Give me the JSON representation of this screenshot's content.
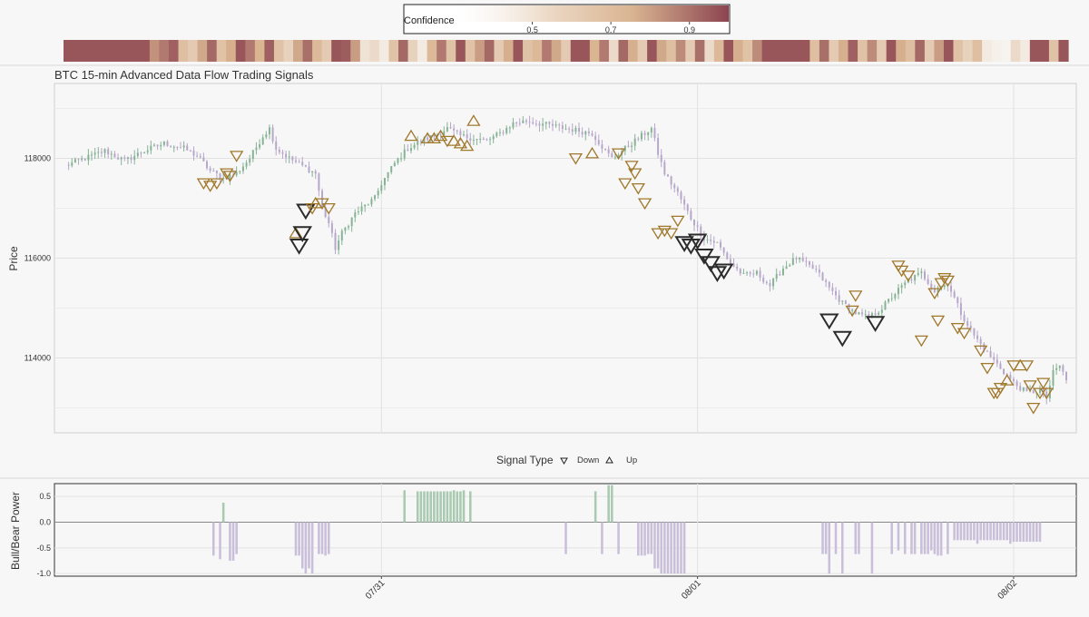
{
  "chart_data": [
    {
      "type": "heatmap",
      "legend_title": "Confidence",
      "legend_ticks": [
        "0.5",
        "0.7",
        "0.9"
      ],
      "legend_range": [
        0.3,
        1.0
      ],
      "colors": {
        "low": "#f7f3ee",
        "mid": "#d9b491",
        "high": "#8c4450"
      },
      "confidence_strip": [
        0.95,
        0.95,
        0.95,
        0.95,
        0.95,
        0.95,
        0.95,
        0.95,
        0.95,
        0.78,
        0.85,
        0.92,
        0.62,
        0.55,
        0.72,
        0.9,
        0.6,
        0.7,
        0.95,
        0.85,
        0.68,
        0.92,
        0.6,
        0.5,
        0.72,
        0.88,
        0.65,
        0.55,
        0.95,
        0.93,
        0.75,
        0.4,
        0.45,
        0.35,
        0.6,
        0.9,
        0.5,
        0.35,
        0.65,
        0.85,
        0.6,
        0.95,
        0.6,
        0.75,
        0.9,
        0.55,
        0.7,
        0.95,
        0.6,
        0.65,
        0.85,
        0.72,
        0.55,
        0.95,
        0.95,
        0.68,
        0.85,
        0.45,
        0.9,
        0.7,
        0.55,
        0.95,
        0.72,
        0.62,
        0.8,
        0.55,
        0.88,
        0.45,
        0.65,
        0.95,
        0.7,
        0.6,
        0.8,
        0.95,
        0.95,
        0.95,
        0.95,
        0.95,
        0.62,
        0.88,
        0.55,
        0.7,
        0.92,
        0.6,
        0.8,
        0.55,
        0.95,
        0.7,
        0.62,
        0.9,
        0.55,
        0.75,
        0.95,
        0.6,
        0.5,
        0.62,
        0.35,
        0.32,
        0.3,
        0.45,
        0.35,
        0.95,
        0.95,
        0.6,
        0.95
      ]
    },
    {
      "type": "candlestick",
      "title": "BTC 15-min Advanced Data Flow Trading Signals",
      "ylabel": "Price",
      "ylim": [
        112500,
        119500
      ],
      "yticks": [
        114000,
        116000,
        118000
      ],
      "xlim": [
        0,
        304
      ],
      "xtick_positions": [
        96,
        192,
        288
      ],
      "grid": true,
      "up_color": "#86b394",
      "down_color": "#b7a7c9",
      "anchors": [
        [
          0,
          117850
        ],
        [
          6,
          118000
        ],
        [
          12,
          118150
        ],
        [
          18,
          117950
        ],
        [
          24,
          118150
        ],
        [
          30,
          118300
        ],
        [
          36,
          118200
        ],
        [
          40,
          118050
        ],
        [
          44,
          117750
        ],
        [
          48,
          117600
        ],
        [
          52,
          117700
        ],
        [
          56,
          118000
        ],
        [
          60,
          118450
        ],
        [
          62,
          118600
        ],
        [
          64,
          118200
        ],
        [
          68,
          118000
        ],
        [
          72,
          117850
        ],
        [
          76,
          117700
        ],
        [
          78,
          117000
        ],
        [
          80,
          116700
        ],
        [
          82,
          116200
        ],
        [
          84,
          116500
        ],
        [
          86,
          116700
        ],
        [
          88,
          116900
        ],
        [
          90,
          117000
        ],
        [
          92,
          117100
        ],
        [
          94,
          117200
        ],
        [
          96,
          117500
        ],
        [
          100,
          117900
        ],
        [
          104,
          118200
        ],
        [
          108,
          118350
        ],
        [
          112,
          118450
        ],
        [
          116,
          118600
        ],
        [
          120,
          118450
        ],
        [
          124,
          118400
        ],
        [
          128,
          118350
        ],
        [
          132,
          118500
        ],
        [
          136,
          118700
        ],
        [
          140,
          118750
        ],
        [
          144,
          118700
        ],
        [
          148,
          118650
        ],
        [
          152,
          118600
        ],
        [
          156,
          118550
        ],
        [
          160,
          118500
        ],
        [
          164,
          118150
        ],
        [
          166,
          118000
        ],
        [
          168,
          118100
        ],
        [
          172,
          118300
        ],
        [
          176,
          118500
        ],
        [
          178,
          118600
        ],
        [
          180,
          118100
        ],
        [
          182,
          117700
        ],
        [
          186,
          117300
        ],
        [
          190,
          116800
        ],
        [
          194,
          116400
        ],
        [
          198,
          116300
        ],
        [
          202,
          115900
        ],
        [
          206,
          115650
        ],
        [
          210,
          115700
        ],
        [
          214,
          115450
        ],
        [
          218,
          115800
        ],
        [
          222,
          116000
        ],
        [
          228,
          115750
        ],
        [
          232,
          115400
        ],
        [
          236,
          115100
        ],
        [
          240,
          114900
        ],
        [
          244,
          114800
        ],
        [
          248,
          115000
        ],
        [
          252,
          115300
        ],
        [
          256,
          115550
        ],
        [
          260,
          115700
        ],
        [
          264,
          115350
        ],
        [
          268,
          115500
        ],
        [
          272,
          114900
        ],
        [
          276,
          114450
        ],
        [
          280,
          114100
        ],
        [
          284,
          113800
        ],
        [
          288,
          113500
        ],
        [
          292,
          113300
        ],
        [
          296,
          113350
        ],
        [
          298,
          113200
        ],
        [
          300,
          113700
        ],
        [
          302,
          113850
        ],
        [
          304,
          113550
        ]
      ],
      "signal_types": [
        "Down",
        "Up"
      ],
      "signals": [
        {
          "i": 42,
          "y": 117500,
          "dir": "down",
          "conf": 0.7
        },
        {
          "i": 44,
          "y": 117450,
          "dir": "down",
          "conf": 0.75
        },
        {
          "i": 46,
          "y": 117500,
          "dir": "down",
          "conf": 0.7
        },
        {
          "i": 49,
          "y": 117700,
          "dir": "down",
          "conf": 0.72
        },
        {
          "i": 50,
          "y": 117650,
          "dir": "down",
          "conf": 0.7
        },
        {
          "i": 52,
          "y": 118050,
          "dir": "down",
          "conf": 0.65
        },
        {
          "i": 70,
          "y": 116500,
          "dir": "up",
          "conf": 0.7
        },
        {
          "i": 71,
          "y": 116250,
          "dir": "down",
          "conf": 0.95
        },
        {
          "i": 72,
          "y": 116500,
          "dir": "down",
          "conf": 0.95
        },
        {
          "i": 73,
          "y": 116950,
          "dir": "down",
          "conf": 0.95
        },
        {
          "i": 75,
          "y": 117000,
          "dir": "down",
          "conf": 0.7
        },
        {
          "i": 76,
          "y": 117100,
          "dir": "up",
          "conf": 0.7
        },
        {
          "i": 78,
          "y": 117100,
          "dir": "down",
          "conf": 0.75
        },
        {
          "i": 80,
          "y": 117000,
          "dir": "down",
          "conf": 0.72
        },
        {
          "i": 105,
          "y": 118450,
          "dir": "up",
          "conf": 0.7
        },
        {
          "i": 110,
          "y": 118400,
          "dir": "up",
          "conf": 0.72
        },
        {
          "i": 112,
          "y": 118400,
          "dir": "up",
          "conf": 0.7
        },
        {
          "i": 114,
          "y": 118450,
          "dir": "up",
          "conf": 0.72
        },
        {
          "i": 116,
          "y": 118350,
          "dir": "down",
          "conf": 0.7
        },
        {
          "i": 118,
          "y": 118350,
          "dir": "up",
          "conf": 0.7
        },
        {
          "i": 120,
          "y": 118300,
          "dir": "up",
          "conf": 0.72
        },
        {
          "i": 122,
          "y": 118250,
          "dir": "up",
          "conf": 0.7
        },
        {
          "i": 124,
          "y": 118750,
          "dir": "up",
          "conf": 0.7
        },
        {
          "i": 155,
          "y": 118000,
          "dir": "down",
          "conf": 0.72
        },
        {
          "i": 160,
          "y": 118100,
          "dir": "up",
          "conf": 0.72
        },
        {
          "i": 168,
          "y": 118100,
          "dir": "down",
          "conf": 0.72
        },
        {
          "i": 170,
          "y": 117500,
          "dir": "down",
          "conf": 0.72
        },
        {
          "i": 172,
          "y": 117850,
          "dir": "down",
          "conf": 0.72
        },
        {
          "i": 173,
          "y": 117700,
          "dir": "down",
          "conf": 0.72
        },
        {
          "i": 174,
          "y": 117400,
          "dir": "down",
          "conf": 0.7
        },
        {
          "i": 176,
          "y": 117100,
          "dir": "down",
          "conf": 0.7
        },
        {
          "i": 180,
          "y": 116500,
          "dir": "down",
          "conf": 0.72
        },
        {
          "i": 182,
          "y": 116550,
          "dir": "down",
          "conf": 0.72
        },
        {
          "i": 184,
          "y": 116500,
          "dir": "down",
          "conf": 0.72
        },
        {
          "i": 186,
          "y": 116750,
          "dir": "down",
          "conf": 0.7
        },
        {
          "i": 188,
          "y": 116300,
          "dir": "down",
          "conf": 0.95
        },
        {
          "i": 190,
          "y": 116250,
          "dir": "down",
          "conf": 0.95
        },
        {
          "i": 192,
          "y": 116350,
          "dir": "down",
          "conf": 0.95
        },
        {
          "i": 194,
          "y": 116050,
          "dir": "down",
          "conf": 0.95
        },
        {
          "i": 196,
          "y": 115900,
          "dir": "down",
          "conf": 0.95
        },
        {
          "i": 198,
          "y": 115700,
          "dir": "down",
          "conf": 0.95
        },
        {
          "i": 200,
          "y": 115750,
          "dir": "down",
          "conf": 0.95
        },
        {
          "i": 232,
          "y": 114750,
          "dir": "down",
          "conf": 0.95
        },
        {
          "i": 236,
          "y": 114400,
          "dir": "down",
          "conf": 0.95
        },
        {
          "i": 239,
          "y": 114950,
          "dir": "down",
          "conf": 0.72
        },
        {
          "i": 240,
          "y": 115250,
          "dir": "down",
          "conf": 0.72
        },
        {
          "i": 246,
          "y": 114700,
          "dir": "down",
          "conf": 0.95
        },
        {
          "i": 253,
          "y": 115850,
          "dir": "down",
          "conf": 0.72
        },
        {
          "i": 254,
          "y": 115750,
          "dir": "down",
          "conf": 0.72
        },
        {
          "i": 256,
          "y": 115650,
          "dir": "down",
          "conf": 0.72
        },
        {
          "i": 260,
          "y": 114350,
          "dir": "down",
          "conf": 0.72
        },
        {
          "i": 264,
          "y": 115300,
          "dir": "down",
          "conf": 0.72
        },
        {
          "i": 265,
          "y": 114750,
          "dir": "down",
          "conf": 0.72
        },
        {
          "i": 266,
          "y": 115500,
          "dir": "down",
          "conf": 0.72
        },
        {
          "i": 267,
          "y": 115600,
          "dir": "down",
          "conf": 0.72
        },
        {
          "i": 268,
          "y": 115550,
          "dir": "down",
          "conf": 0.72
        },
        {
          "i": 271,
          "y": 114600,
          "dir": "down",
          "conf": 0.72
        },
        {
          "i": 273,
          "y": 114500,
          "dir": "down",
          "conf": 0.72
        },
        {
          "i": 278,
          "y": 114150,
          "dir": "down",
          "conf": 0.72
        },
        {
          "i": 280,
          "y": 113800,
          "dir": "down",
          "conf": 0.72
        },
        {
          "i": 282,
          "y": 113300,
          "dir": "down",
          "conf": 0.72
        },
        {
          "i": 283,
          "y": 113300,
          "dir": "down",
          "conf": 0.72
        },
        {
          "i": 284,
          "y": 113400,
          "dir": "down",
          "conf": 0.72
        },
        {
          "i": 286,
          "y": 113550,
          "dir": "up",
          "conf": 0.72
        },
        {
          "i": 288,
          "y": 113850,
          "dir": "down",
          "conf": 0.72
        },
        {
          "i": 290,
          "y": 113850,
          "dir": "up",
          "conf": 0.72
        },
        {
          "i": 292,
          "y": 113850,
          "dir": "down",
          "conf": 0.72
        },
        {
          "i": 293,
          "y": 113450,
          "dir": "down",
          "conf": 0.72
        },
        {
          "i": 294,
          "y": 113000,
          "dir": "down",
          "conf": 0.72
        },
        {
          "i": 296,
          "y": 113300,
          "dir": "down",
          "conf": 0.72
        },
        {
          "i": 297,
          "y": 113500,
          "dir": "down",
          "conf": 0.72
        },
        {
          "i": 298,
          "y": 113300,
          "dir": "down",
          "conf": 0.72
        }
      ]
    },
    {
      "type": "bar",
      "ylabel": "Bull/Bear Power",
      "ylim": [
        -1.05,
        0.75
      ],
      "yticks": [
        "0.5",
        "0.0",
        "-0.5",
        "-1.0"
      ],
      "ytick_values": [
        0.5,
        0.0,
        -0.5,
        -1.0
      ],
      "xtick_labels": [
        "07/31",
        "08/01",
        "08/02"
      ],
      "segments": [
        {
          "from": 45,
          "to": 45,
          "v": -0.65
        },
        {
          "from": 47,
          "to": 47,
          "v": -0.72
        },
        {
          "from": 48,
          "to": 48,
          "v": 0.38
        },
        {
          "from": 50,
          "to": 51,
          "v": -0.75
        },
        {
          "from": 52,
          "to": 52,
          "v": -0.62
        },
        {
          "from": 70,
          "to": 71,
          "v": -0.65
        },
        {
          "from": 72,
          "to": 72,
          "v": -0.9
        },
        {
          "from": 73,
          "to": 73,
          "v": -1.0
        },
        {
          "from": 74,
          "to": 74,
          "v": -0.9
        },
        {
          "from": 75,
          "to": 75,
          "v": -1.0
        },
        {
          "from": 77,
          "to": 78,
          "v": -0.62
        },
        {
          "from": 79,
          "to": 79,
          "v": -0.65
        },
        {
          "from": 80,
          "to": 80,
          "v": -0.62
        },
        {
          "from": 103,
          "to": 103,
          "v": 0.62
        },
        {
          "from": 107,
          "to": 117,
          "v": 0.6
        },
        {
          "from": 118,
          "to": 118,
          "v": 0.62
        },
        {
          "from": 119,
          "to": 120,
          "v": 0.6
        },
        {
          "from": 121,
          "to": 121,
          "v": 0.62
        },
        {
          "from": 123,
          "to": 123,
          "v": 0.6
        },
        {
          "from": 152,
          "to": 152,
          "v": -0.62
        },
        {
          "from": 161,
          "to": 161,
          "v": 0.6
        },
        {
          "from": 163,
          "to": 163,
          "v": -0.62
        },
        {
          "from": 165,
          "to": 165,
          "v": 0.72
        },
        {
          "from": 166,
          "to": 166,
          "v": 0.72
        },
        {
          "from": 168,
          "to": 168,
          "v": -0.62
        },
        {
          "from": 174,
          "to": 176,
          "v": -0.65
        },
        {
          "from": 177,
          "to": 178,
          "v": -0.62
        },
        {
          "from": 179,
          "to": 180,
          "v": -0.9
        },
        {
          "from": 181,
          "to": 188,
          "v": -1.0
        },
        {
          "from": 230,
          "to": 231,
          "v": -0.62
        },
        {
          "from": 232,
          "to": 232,
          "v": -1.0
        },
        {
          "from": 234,
          "to": 234,
          "v": -0.62
        },
        {
          "from": 236,
          "to": 236,
          "v": -1.0
        },
        {
          "from": 240,
          "to": 241,
          "v": -0.62
        },
        {
          "from": 245,
          "to": 245,
          "v": -1.0
        },
        {
          "from": 251,
          "to": 251,
          "v": -0.62
        },
        {
          "from": 253,
          "to": 253,
          "v": -0.55
        },
        {
          "from": 255,
          "to": 255,
          "v": -0.62
        },
        {
          "from": 257,
          "to": 258,
          "v": -0.62
        },
        {
          "from": 260,
          "to": 262,
          "v": -0.62
        },
        {
          "from": 263,
          "to": 263,
          "v": -0.55
        },
        {
          "from": 264,
          "to": 264,
          "v": -0.62
        },
        {
          "from": 265,
          "to": 266,
          "v": -0.65
        },
        {
          "from": 268,
          "to": 268,
          "v": -0.62
        },
        {
          "from": 270,
          "to": 276,
          "v": -0.35
        },
        {
          "from": 277,
          "to": 277,
          "v": -0.42
        },
        {
          "from": 278,
          "to": 286,
          "v": -0.35
        },
        {
          "from": 287,
          "to": 287,
          "v": -0.42
        },
        {
          "from": 288,
          "to": 296,
          "v": -0.38
        }
      ]
    }
  ]
}
